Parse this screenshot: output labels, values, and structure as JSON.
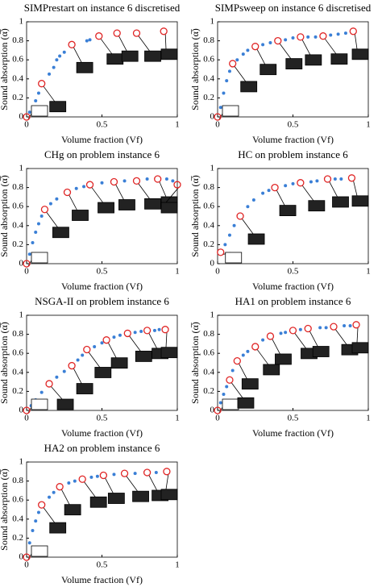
{
  "chart_data": [
    {
      "type": "scatter",
      "title": "SIMPrestart on instance 6 discretised",
      "x_label": "Volume fraction (Vf)",
      "y_label": "Sound absorption (α̅)",
      "xlim": [
        0,
        1
      ],
      "ylim": [
        0,
        1
      ],
      "xticks": [
        0,
        0.5,
        1
      ],
      "yticks": [
        0,
        0.2,
        0.4,
        0.6,
        0.8,
        1
      ],
      "series": [
        {
          "color": "#3a7fd6",
          "x": [
            0.02,
            0.04,
            0.06,
            0.08,
            0.15,
            0.18,
            0.2,
            0.22,
            0.25,
            0.4,
            0.42
          ],
          "values": [
            0.05,
            0.1,
            0.17,
            0.25,
            0.45,
            0.52,
            0.6,
            0.64,
            0.68,
            0.8,
            0.81
          ]
        },
        {
          "color": "#e02525",
          "x": [
            0,
            0.1,
            0.3,
            0.48,
            0.6,
            0.73,
            0.91
          ],
          "values": [
            0,
            0.35,
            0.76,
            0.85,
            0.88,
            0.88,
            0.9
          ]
        }
      ]
    },
    {
      "type": "scatter",
      "title": "SIMPsweep on instance 6 discretised",
      "x_label": "Volume fraction (Vf)",
      "y_label": "Sound absorption (α̅)",
      "xlim": [
        0,
        1
      ],
      "ylim": [
        0,
        1
      ],
      "xticks": [
        0,
        0.5,
        1
      ],
      "yticks": [
        0,
        0.2,
        0.4,
        0.6,
        0.8,
        1
      ],
      "series": [
        {
          "color": "#3a7fd6",
          "x": [
            0.02,
            0.04,
            0.06,
            0.08,
            0.13,
            0.17,
            0.2,
            0.3,
            0.35,
            0.45,
            0.5,
            0.6,
            0.65,
            0.75,
            0.8,
            0.85
          ],
          "values": [
            0.1,
            0.25,
            0.38,
            0.48,
            0.6,
            0.66,
            0.7,
            0.76,
            0.78,
            0.81,
            0.83,
            0.84,
            0.84,
            0.86,
            0.87,
            0.88
          ]
        },
        {
          "color": "#e02525",
          "x": [
            0,
            0.1,
            0.25,
            0.4,
            0.55,
            0.7,
            0.9
          ],
          "values": [
            0,
            0.56,
            0.74,
            0.8,
            0.84,
            0.85,
            0.9
          ]
        }
      ]
    },
    {
      "type": "scatter",
      "title": "CHg on problem instance 6",
      "x_label": "Volume fraction (Vf)",
      "y_label": "Sound absorption (α̅)",
      "xlim": [
        0,
        1
      ],
      "ylim": [
        0,
        1
      ],
      "xticks": [
        0,
        0.5,
        1
      ],
      "yticks": [
        0,
        0.2,
        0.4,
        0.6,
        0.8,
        1
      ],
      "series": [
        {
          "color": "#3a7fd6",
          "x": [
            0.02,
            0.04,
            0.06,
            0.08,
            0.1,
            0.16,
            0.2,
            0.33,
            0.38,
            0.5,
            0.65,
            0.8,
            0.93,
            0.97
          ],
          "values": [
            0.1,
            0.22,
            0.33,
            0.42,
            0.5,
            0.63,
            0.68,
            0.79,
            0.81,
            0.85,
            0.87,
            0.89,
            0.89,
            0.87
          ]
        },
        {
          "color": "#e02525",
          "x": [
            0,
            0.12,
            0.27,
            0.42,
            0.58,
            0.73,
            0.87,
            1
          ],
          "values": [
            0,
            0.57,
            0.75,
            0.83,
            0.86,
            0.87,
            0.89,
            0.83
          ]
        }
      ]
    },
    {
      "type": "scatter",
      "title": "HC on problem instance 6",
      "x_label": "Volume fraction (Vf)",
      "y_label": "Sound absorption (α̅)",
      "xlim": [
        0,
        1
      ],
      "ylim": [
        0,
        1
      ],
      "xticks": [
        0,
        0.5,
        1
      ],
      "yticks": [
        0,
        0.2,
        0.4,
        0.6,
        0.8,
        1
      ],
      "series": [
        {
          "color": "#3a7fd6",
          "x": [
            0.05,
            0.08,
            0.11,
            0.2,
            0.24,
            0.3,
            0.34,
            0.45,
            0.5,
            0.62,
            0.66,
            0.78,
            0.82
          ],
          "values": [
            0.2,
            0.3,
            0.4,
            0.6,
            0.67,
            0.74,
            0.77,
            0.82,
            0.84,
            0.86,
            0.87,
            0.89,
            0.89
          ]
        },
        {
          "color": "#e02525",
          "x": [
            0.02,
            0.15,
            0.38,
            0.55,
            0.73,
            0.89
          ],
          "values": [
            0.12,
            0.5,
            0.8,
            0.85,
            0.89,
            0.9
          ]
        }
      ]
    },
    {
      "type": "scatter",
      "title": "NSGA-II on problem instance 6",
      "x_label": "Volume fraction (Vf)",
      "y_label": "Sound absorption (α̅)",
      "xlim": [
        0,
        1
      ],
      "ylim": [
        0,
        1
      ],
      "xticks": [
        0,
        0.5,
        1
      ],
      "yticks": [
        0,
        0.2,
        0.4,
        0.6,
        0.8,
        1
      ],
      "series": [
        {
          "color": "#3a7fd6",
          "x": [
            0.03,
            0.06,
            0.1,
            0.2,
            0.25,
            0.34,
            0.37,
            0.45,
            0.5,
            0.58,
            0.62,
            0.72,
            0.76,
            0.85,
            0.88
          ],
          "values": [
            0.05,
            0.11,
            0.19,
            0.35,
            0.41,
            0.53,
            0.58,
            0.67,
            0.71,
            0.77,
            0.79,
            0.82,
            0.83,
            0.84,
            0.85
          ]
        },
        {
          "color": "#e02525",
          "x": [
            0,
            0.15,
            0.3,
            0.4,
            0.53,
            0.67,
            0.8,
            0.92
          ],
          "values": [
            0,
            0.28,
            0.47,
            0.64,
            0.74,
            0.81,
            0.84,
            0.85
          ]
        }
      ]
    },
    {
      "type": "scatter",
      "title": "HA1 on problem instance 6",
      "x_label": "Volume fraction (Vf)",
      "y_label": "Sound absorption (α̅)",
      "xlim": [
        0,
        1
      ],
      "ylim": [
        0,
        1
      ],
      "xticks": [
        0,
        0.5,
        1
      ],
      "yticks": [
        0,
        0.2,
        0.4,
        0.6,
        0.8,
        1
      ],
      "series": [
        {
          "color": "#3a7fd6",
          "x": [
            0.02,
            0.04,
            0.06,
            0.1,
            0.17,
            0.2,
            0.3,
            0.42,
            0.45,
            0.55,
            0.68,
            0.72,
            0.84,
            0.88
          ],
          "values": [
            0.08,
            0.17,
            0.25,
            0.42,
            0.58,
            0.62,
            0.74,
            0.81,
            0.82,
            0.85,
            0.87,
            0.87,
            0.89,
            0.89
          ]
        },
        {
          "color": "#e02525",
          "x": [
            0,
            0.08,
            0.13,
            0.25,
            0.35,
            0.5,
            0.6,
            0.77,
            0.92
          ],
          "values": [
            0,
            0.32,
            0.52,
            0.67,
            0.78,
            0.84,
            0.86,
            0.88,
            0.9
          ]
        }
      ]
    },
    {
      "type": "scatter",
      "title": "HA2 on problem instance 6",
      "x_label": "Volume fraction (Vf)",
      "y_label": "Sound absorption (α̅)",
      "xlim": [
        0,
        1
      ],
      "ylim": [
        0,
        1
      ],
      "xticks": [
        0,
        0.5,
        1
      ],
      "yticks": [
        0,
        0.2,
        0.4,
        0.6,
        0.8,
        1
      ],
      "series": [
        {
          "color": "#3a7fd6",
          "x": [
            0.02,
            0.04,
            0.06,
            0.08,
            0.15,
            0.18,
            0.28,
            0.32,
            0.43,
            0.47,
            0.58,
            0.72,
            0.86
          ],
          "values": [
            0.15,
            0.28,
            0.38,
            0.47,
            0.63,
            0.68,
            0.78,
            0.8,
            0.84,
            0.85,
            0.87,
            0.88,
            0.89
          ]
        },
        {
          "color": "#e02525",
          "x": [
            0,
            0.1,
            0.22,
            0.37,
            0.51,
            0.65,
            0.8,
            0.93
          ],
          "values": [
            0,
            0.55,
            0.74,
            0.82,
            0.86,
            0.88,
            0.89,
            0.9
          ]
        }
      ]
    }
  ]
}
